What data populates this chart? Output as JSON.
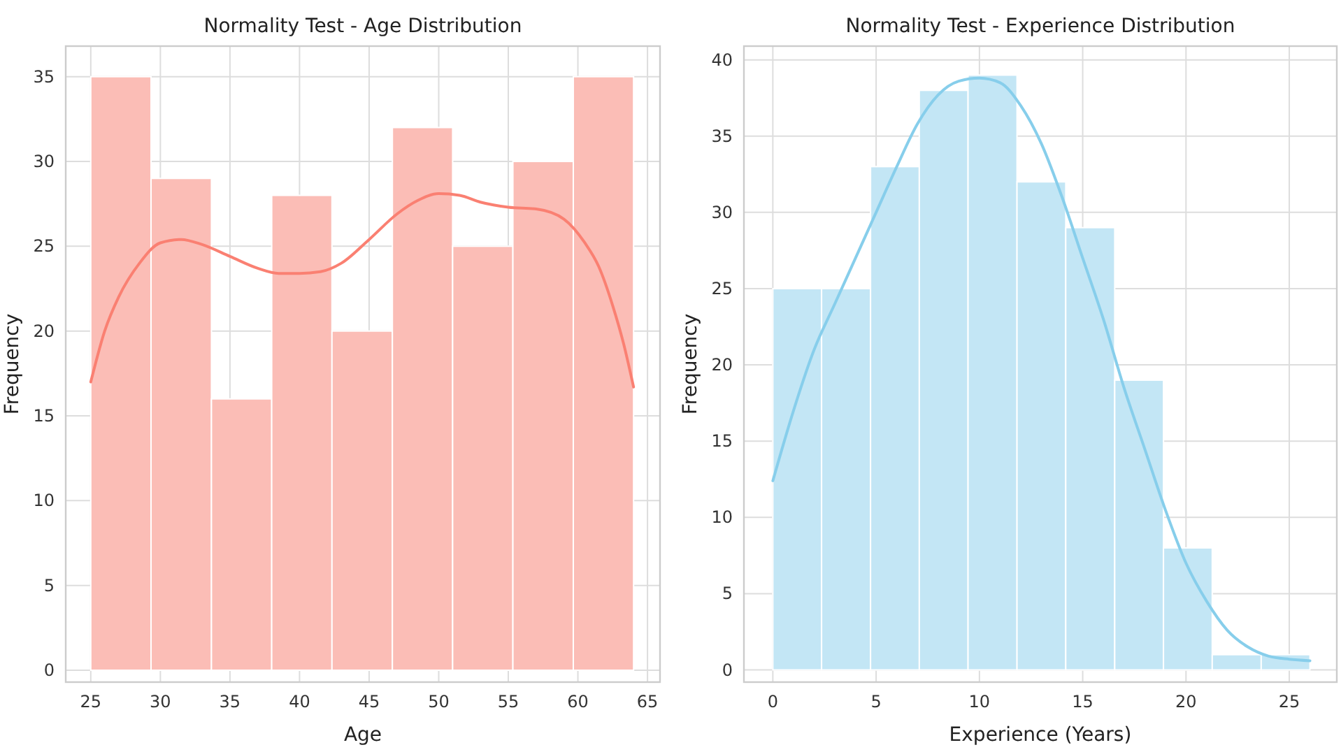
{
  "chart_data": [
    {
      "type": "histogram",
      "title": "Normality Test - Age Distribution",
      "xlabel": "Age",
      "ylabel": "Frequency",
      "bins": [
        25,
        29.33,
        33.67,
        38,
        42.33,
        46.67,
        51,
        55.33,
        59.67,
        64
      ],
      "values": [
        35,
        29,
        16,
        28,
        20,
        32,
        25,
        30,
        35
      ],
      "color": "#fbbdb6",
      "xlim": [
        23.2,
        65.9
      ],
      "ylim": [
        -0.7,
        36.8
      ],
      "xticks": [
        25,
        30,
        35,
        40,
        45,
        50,
        55,
        60,
        65
      ],
      "yticks": [
        0,
        5,
        10,
        15,
        20,
        25,
        30,
        35
      ],
      "grid": true,
      "series": [
        {
          "type": "line",
          "color": "#fa8072",
          "x": [
            25,
            26,
            27,
            28.5,
            30,
            31.5,
            33,
            35,
            37,
            38.5,
            40,
            41.5,
            43,
            45,
            47,
            48.5,
            50,
            51.5,
            53,
            55,
            57,
            59,
            60.5,
            61.5,
            62.5,
            63.3,
            64
          ],
          "values": [
            17,
            20,
            22,
            24,
            25.2,
            25.4,
            25.1,
            24.4,
            23.7,
            23.4,
            23.4,
            23.5,
            24,
            25.4,
            26.9,
            27.7,
            28.1,
            28,
            27.6,
            27.3,
            27.2,
            26.6,
            25.2,
            23.8,
            21.5,
            19.2,
            16.7
          ]
        }
      ]
    },
    {
      "type": "histogram",
      "title": "Normality Test - Experience Distribution",
      "xlabel": "Experience (Years)",
      "ylabel": "Frequency",
      "bins": [
        0,
        2.36,
        4.73,
        7.09,
        9.45,
        11.82,
        14.18,
        16.55,
        18.91,
        21.27,
        23.64,
        26
      ],
      "values": [
        25,
        25,
        33,
        38,
        39,
        32,
        29,
        19,
        8,
        1,
        1
      ],
      "color": "#c3e6f5",
      "xlim": [
        -1.4,
        27.3
      ],
      "ylim": [
        -0.8,
        40.9
      ],
      "xticks": [
        0,
        5,
        10,
        15,
        20,
        25
      ],
      "yticks": [
        0,
        5,
        10,
        15,
        20,
        25,
        30,
        35,
        40
      ],
      "grid": true,
      "series": [
        {
          "type": "line",
          "color": "#87ceeb",
          "x": [
            0,
            1,
            2,
            3,
            4,
            5,
            6,
            7,
            8,
            9,
            10,
            11,
            12,
            13,
            14,
            15,
            16,
            17,
            18,
            19,
            20,
            21,
            22,
            23,
            24,
            25,
            26
          ],
          "values": [
            12.4,
            17,
            21,
            24,
            27,
            30,
            33,
            35.8,
            37.7,
            38.6,
            38.8,
            38.5,
            37,
            34.5,
            31,
            27,
            23,
            18.5,
            14.5,
            10.5,
            7,
            4.5,
            2.6,
            1.5,
            0.9,
            0.7,
            0.6
          ]
        }
      ]
    }
  ]
}
